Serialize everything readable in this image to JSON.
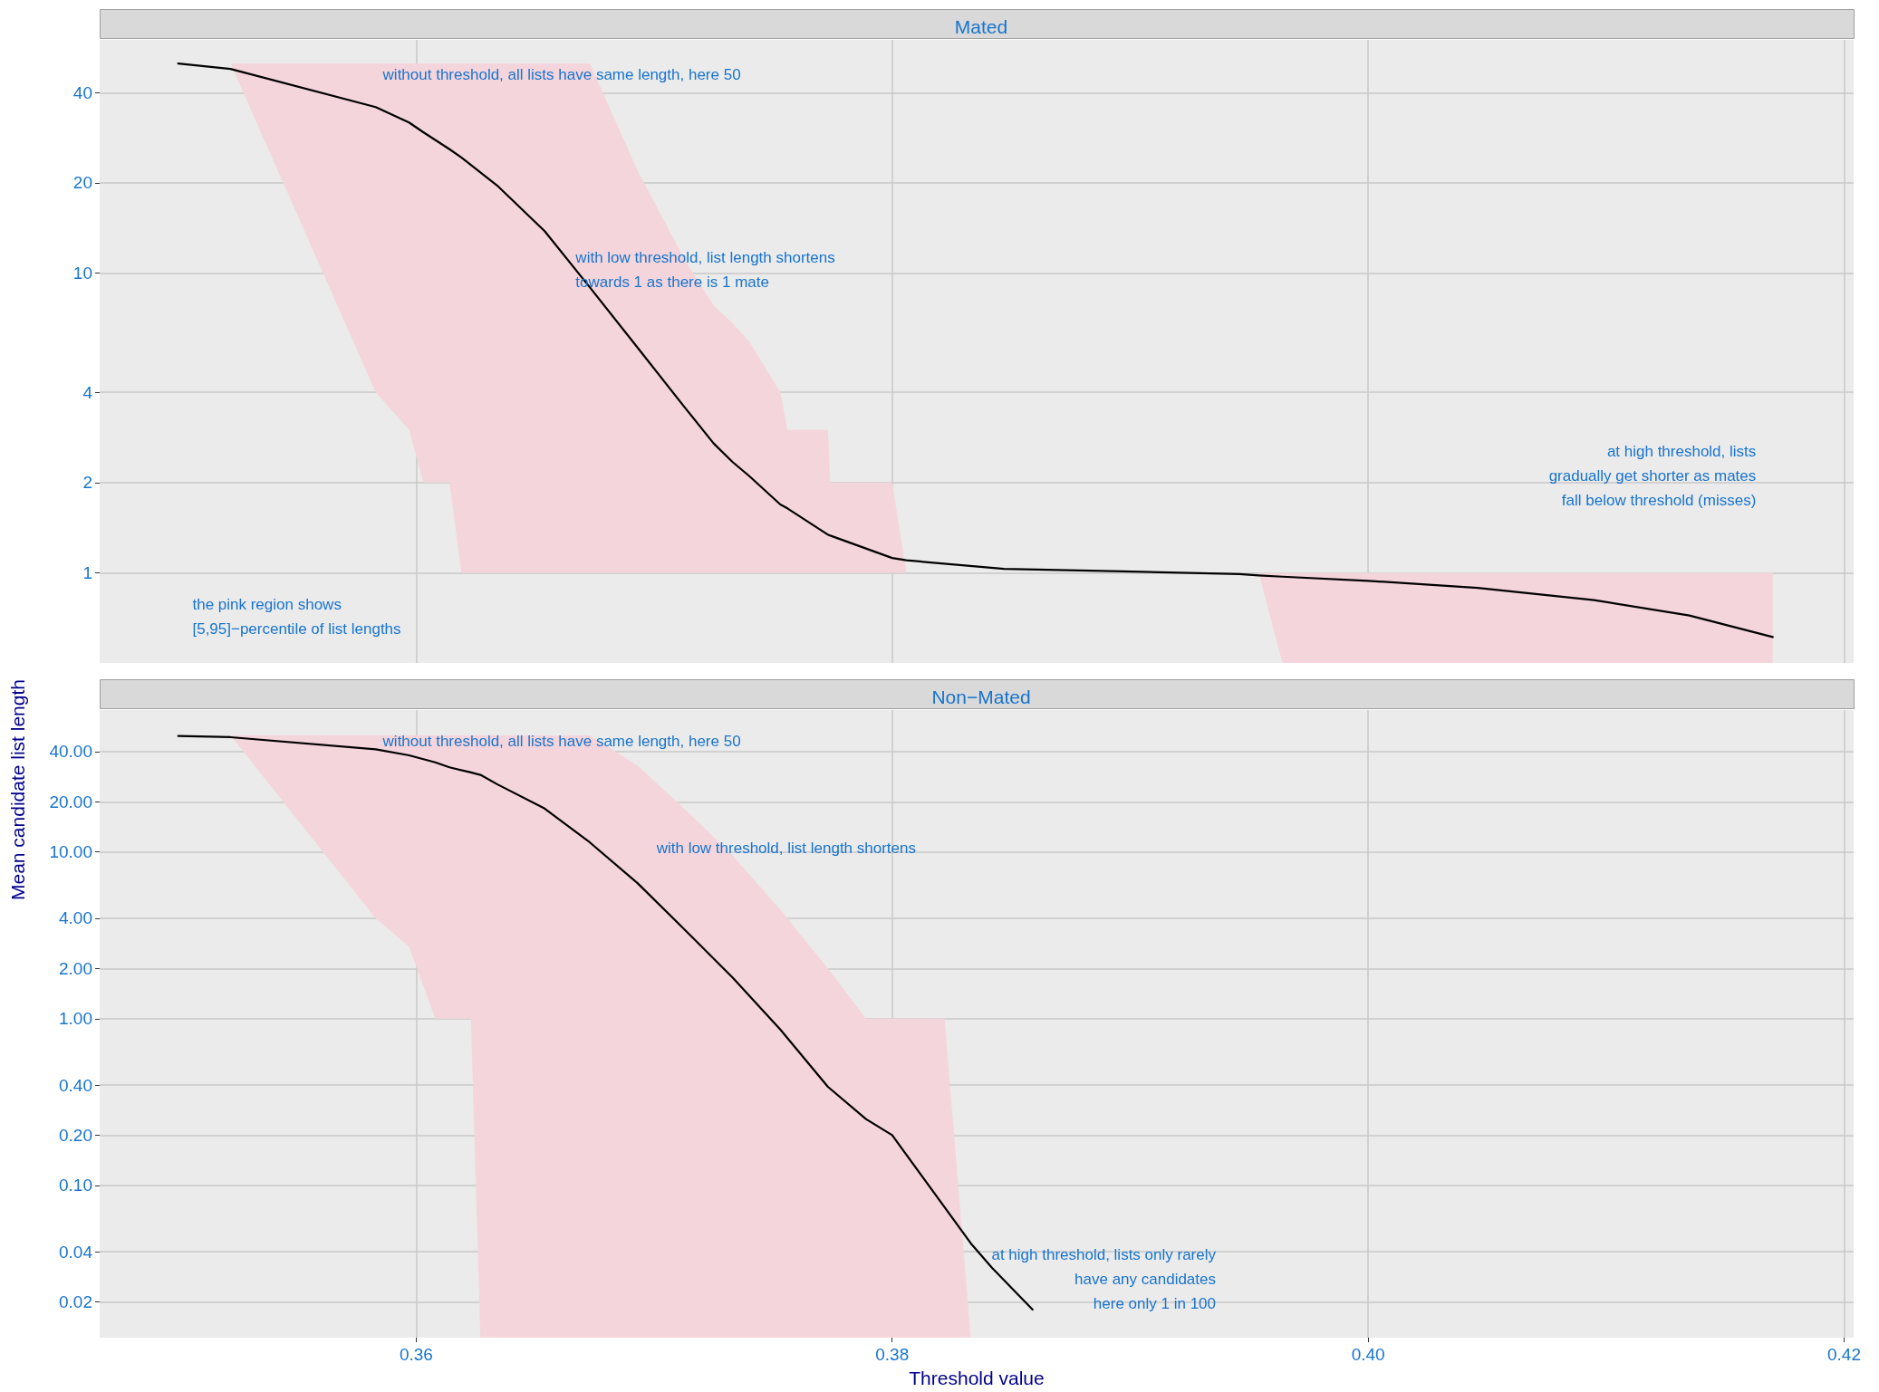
{
  "chart_data": [
    {
      "type": "line",
      "title": "Mated",
      "ylabel": "Mean candidate list length",
      "log": "y",
      "grid": true,
      "tick_labels": "y",
      "xlim": [
        0.3467,
        0.4204
      ],
      "xticks": [
        0.36,
        0.38,
        0.4,
        0.42
      ],
      "ylim": [
        0.5,
        60
      ],
      "yticks": [
        1,
        2,
        4,
        10,
        20,
        40
      ],
      "annotations": [
        "without threshold, all lists have same length, here 50",
        "with low threshold, list length shortens\ntowards 1 as there is 1 mate",
        "at high threshold, lists\ngradually get shorter as mates\nfall below threshold (misses)",
        "the pink region shows\n[5,95]−percentile of list lengths"
      ],
      "series": [
        {
          "color": "#000000",
          "x": [
            0.35,
            0.3522,
            0.3583,
            0.3597,
            0.3603,
            0.3614,
            0.3619,
            0.3634,
            0.3654,
            0.3673,
            0.3693,
            0.3713,
            0.3725,
            0.3733,
            0.374,
            0.3753,
            0.3756,
            0.3773,
            0.3774,
            0.38,
            0.3806,
            0.3847,
            0.3897,
            0.3946,
            0.3954,
            0.3964,
            0.4,
            0.4046,
            0.4095,
            0.4135,
            0.417
          ],
          "values": [
            50,
            48,
            35.8,
            31.8,
            29.5,
            25.9,
            24.3,
            19.6,
            13.8,
            8.95,
            5.64,
            3.55,
            2.7,
            2.34,
            2.1,
            1.69,
            1.64,
            1.34,
            1.33,
            1.12,
            1.1,
            1.03,
            1.01,
            0.99,
            0.98,
            0.97,
            0.94,
            0.89,
            0.81,
            0.72,
            0.61
          ],
          "upper": [
            50,
            50,
            50,
            50,
            50,
            50,
            50,
            50,
            50,
            50,
            22,
            11,
            7.8,
            6.8,
            5.9,
            4,
            3,
            3,
            2,
            2,
            1,
            1,
            1,
            1,
            1,
            1,
            1,
            1,
            1,
            1,
            1
          ],
          "lower": [
            50,
            50,
            4,
            3,
            2,
            2,
            1,
            1,
            1,
            1,
            1,
            1,
            1,
            1,
            1,
            1,
            1,
            1,
            1,
            1,
            1,
            1,
            1,
            1,
            1,
            0.5,
            0.5,
            0.5,
            0.5,
            0.5,
            0.5
          ]
        }
      ]
    },
    {
      "type": "line",
      "title": "Non−Mated",
      "xlabel": "Threshold value",
      "log": "y",
      "grid": true,
      "xlim": [
        0.3467,
        0.4204
      ],
      "xticks": [
        {
          "value": 0.36,
          "label": "0.36"
        },
        {
          "value": 0.38,
          "label": "0.38"
        },
        {
          "value": 0.4,
          "label": "0.40"
        },
        {
          "value": 0.42,
          "label": "0.42"
        }
      ],
      "ylim": [
        0.0122,
        71
      ],
      "yticks": [
        {
          "value": 0.02,
          "label": "0.02"
        },
        {
          "value": 0.04,
          "label": "0.04"
        },
        {
          "value": 0.1,
          "label": "0.10"
        },
        {
          "value": 0.2,
          "label": "0.20"
        },
        {
          "value": 0.4,
          "label": "0.40"
        },
        {
          "value": 1,
          "label": "1.00"
        },
        {
          "value": 2,
          "label": "2.00"
        },
        {
          "value": 4,
          "label": "4.00"
        },
        {
          "value": 10,
          "label": "10.00"
        },
        {
          "value": 20,
          "label": "20.00"
        },
        {
          "value": 40,
          "label": "40.00"
        }
      ],
      "annotations": [
        "without threshold, all lists have same length, here 50",
        "with low threshold, list length shortens",
        "at high threshold, lists only rarely\nhave any candidates\nhere only 1 in 100"
      ],
      "series": [
        {
          "color": "#000000",
          "x": [
            0.35,
            0.3522,
            0.3583,
            0.3597,
            0.3608,
            0.3614,
            0.3623,
            0.3627,
            0.3634,
            0.3654,
            0.3673,
            0.3693,
            0.3713,
            0.3733,
            0.3753,
            0.3773,
            0.3789,
            0.38,
            0.3822,
            0.3833,
            0.3842,
            0.3859
          ],
          "values": [
            49.6,
            48.8,
            41.3,
            38,
            34.5,
            32.2,
            30,
            29,
            25.5,
            18.2,
            11.4,
            6.5,
            3.4,
            1.76,
            0.86,
            0.39,
            0.25,
            0.2,
            0.074,
            0.045,
            0.032,
            0.018
          ],
          "upper": [
            50,
            50,
            50,
            50,
            50,
            50,
            50,
            50,
            50,
            50,
            50,
            33,
            18,
            9.5,
            4.5,
            2,
            1,
            1,
            1,
            0.0122,
            null,
            null
          ],
          "lower": [
            50,
            50,
            4,
            2.7,
            1,
            1,
            1,
            0.0122,
            0.0122,
            0.0122,
            0.0122,
            0.0122,
            0.0122,
            0.0122,
            0.0122,
            0.0122,
            0.0122,
            0.0122,
            0.0122,
            0.0122,
            null,
            null
          ]
        }
      ]
    }
  ]
}
